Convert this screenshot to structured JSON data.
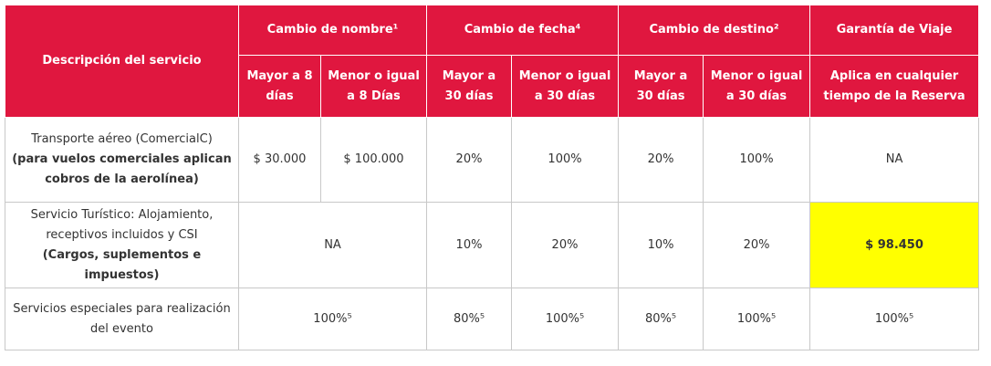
{
  "table": {
    "header": [
      "Descripción del servicio",
      "Cambio de nombre¹",
      "Cambio de fecha⁴",
      "Cambio de destino²",
      "Garantía de Viaje"
    ],
    "subheader": [
      "Mayor a 8 días",
      "Menor o igual a 8 Días",
      "Mayor a 30 días",
      "Menor o igual a 30 días",
      "Mayor a 30 días",
      "Menor o igual a 30 días",
      "Aplica en cualquier tiempo de la Reserva"
    ],
    "rows": [
      {
        "description": "Transporte aéreo (ComercialC)",
        "note": "(para vuelos comerciales aplican cobros de la aerolínea)",
        "cells": [
          "$ 30.000",
          "$ 100.000",
          "20%",
          "100%",
          "20%",
          "100%",
          "NA"
        ]
      },
      {
        "description": "Servicio Turístico: Alojamiento, receptivos incluidos y CSI",
        "note": "(Cargos, suplementos e impuestos)",
        "cells": [
          "NA",
          "10%",
          "20%",
          "10%",
          "20%",
          "$ 98.450"
        ]
      },
      {
        "description": "Servicios especiales para realización del evento",
        "cells": [
          "100%⁵",
          "80%⁵",
          "100%⁵",
          "80%⁵",
          "100%⁵",
          "100%⁵"
        ]
      }
    ]
  }
}
